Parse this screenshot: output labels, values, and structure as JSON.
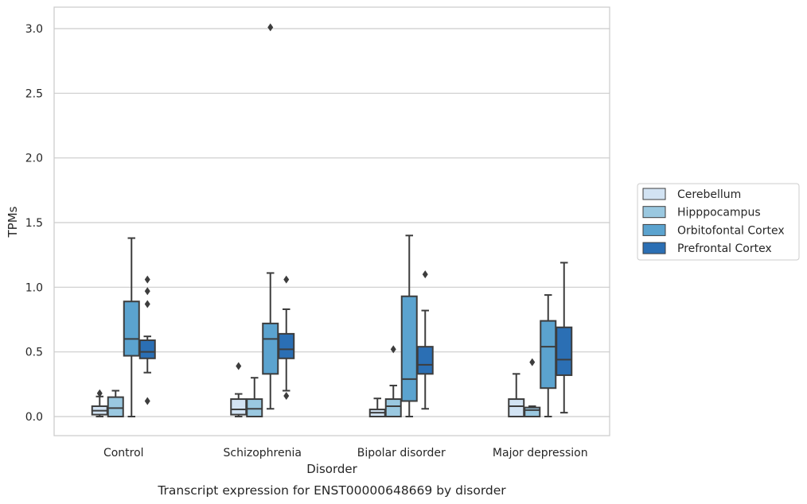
{
  "chart_data": {
    "type": "boxplot",
    "title": "Transcript expression for ENST00000648669 by disorder",
    "xlabel": "Disorder",
    "ylabel": "TPMs",
    "ylim": [
      -0.15,
      3.17
    ],
    "yticks": [
      "0.0",
      "0.5",
      "1.0",
      "1.5",
      "2.0",
      "2.5",
      "3.0"
    ],
    "ytick_values": [
      0,
      0.5,
      1.0,
      1.5,
      2.0,
      2.5,
      3.0
    ],
    "grid": true,
    "legend_position": "right",
    "categories": [
      "Control",
      "Schizophrenia",
      "Bipolar disorder",
      "Major depression"
    ],
    "series": [
      {
        "name": "Cerebellum",
        "color": "#d2e3f3",
        "boxes": [
          {
            "whislo": 0.0,
            "q1": 0.015,
            "med": 0.045,
            "q3": 0.08,
            "whishi": 0.155,
            "fliers": [
              0.18
            ]
          },
          {
            "whislo": 0.0,
            "q1": 0.015,
            "med": 0.055,
            "q3": 0.135,
            "whishi": 0.175,
            "fliers": [
              0.39
            ]
          },
          {
            "whislo": 0.0,
            "q1": 0.0,
            "med": 0.03,
            "q3": 0.055,
            "whishi": 0.14,
            "fliers": []
          },
          {
            "whislo": 0.0,
            "q1": 0.0,
            "med": 0.08,
            "q3": 0.135,
            "whishi": 0.33,
            "fliers": []
          }
        ]
      },
      {
        "name": "Hipppocampus",
        "color": "#9ac8e0",
        "boxes": [
          {
            "whislo": 0.0,
            "q1": 0.0,
            "med": 0.065,
            "q3": 0.15,
            "whishi": 0.2,
            "fliers": []
          },
          {
            "whislo": 0.0,
            "q1": 0.0,
            "med": 0.06,
            "q3": 0.135,
            "whishi": 0.3,
            "fliers": []
          },
          {
            "whislo": 0.0,
            "q1": 0.0,
            "med": 0.08,
            "q3": 0.135,
            "whishi": 0.24,
            "fliers": [
              0.52
            ]
          },
          {
            "whislo": 0.0,
            "q1": 0.0,
            "med": 0.05,
            "q3": 0.07,
            "whishi": 0.08,
            "fliers": [
              0.42
            ]
          }
        ]
      },
      {
        "name": "Orbitofontal Cortex",
        "color": "#5ba3cf",
        "boxes": [
          {
            "whislo": 0.0,
            "q1": 0.47,
            "med": 0.6,
            "q3": 0.89,
            "whishi": 1.38,
            "fliers": []
          },
          {
            "whislo": 0.06,
            "q1": 0.33,
            "med": 0.6,
            "q3": 0.72,
            "whishi": 1.11,
            "fliers": [
              3.01
            ]
          },
          {
            "whislo": 0.0,
            "q1": 0.12,
            "med": 0.29,
            "q3": 0.93,
            "whishi": 1.4,
            "fliers": []
          },
          {
            "whislo": 0.0,
            "q1": 0.22,
            "med": 0.54,
            "q3": 0.74,
            "whishi": 0.94,
            "fliers": []
          }
        ]
      },
      {
        "name": "Prefrontal Cortex",
        "color": "#2b6fb4",
        "boxes": [
          {
            "whislo": 0.34,
            "q1": 0.45,
            "med": 0.5,
            "q3": 0.59,
            "whishi": 0.62,
            "fliers": [
              0.12,
              0.87,
              0.97,
              1.06
            ]
          },
          {
            "whislo": 0.2,
            "q1": 0.45,
            "med": 0.52,
            "q3": 0.64,
            "whishi": 0.83,
            "fliers": [
              0.16,
              1.06
            ]
          },
          {
            "whislo": 0.06,
            "q1": 0.33,
            "med": 0.4,
            "q3": 0.54,
            "whishi": 0.82,
            "fliers": [
              1.1
            ]
          },
          {
            "whislo": 0.03,
            "q1": 0.32,
            "med": 0.44,
            "q3": 0.69,
            "whishi": 1.19,
            "fliers": []
          }
        ]
      }
    ]
  }
}
